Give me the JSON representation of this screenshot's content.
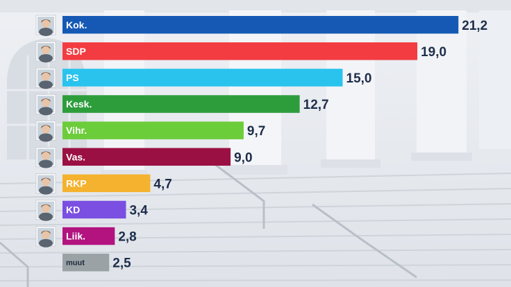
{
  "chart_data": {
    "type": "bar",
    "orientation": "horizontal",
    "categories": [
      "Kok.",
      "SDP",
      "PS",
      "Kesk.",
      "Vihr.",
      "Vas.",
      "RKP",
      "KD",
      "Liik.",
      "muut"
    ],
    "values": [
      21.2,
      19.0,
      15.0,
      12.7,
      9.7,
      9.0,
      4.7,
      3.4,
      2.8,
      2.5
    ],
    "value_labels": [
      "21,2",
      "19,0",
      "15,0",
      "12,7",
      "9,7",
      "9,0",
      "4,7",
      "3,4",
      "2,8",
      "2,5"
    ],
    "colors": [
      "#1559b4",
      "#f23c41",
      "#29c3ee",
      "#2d9d3c",
      "#6ccd3a",
      "#9a1043",
      "#f4b22e",
      "#7a4fe2",
      "#b2137f",
      "#9aa2a6"
    ],
    "portraits": [
      true,
      true,
      true,
      true,
      true,
      true,
      true,
      true,
      true,
      false
    ]
  }
}
